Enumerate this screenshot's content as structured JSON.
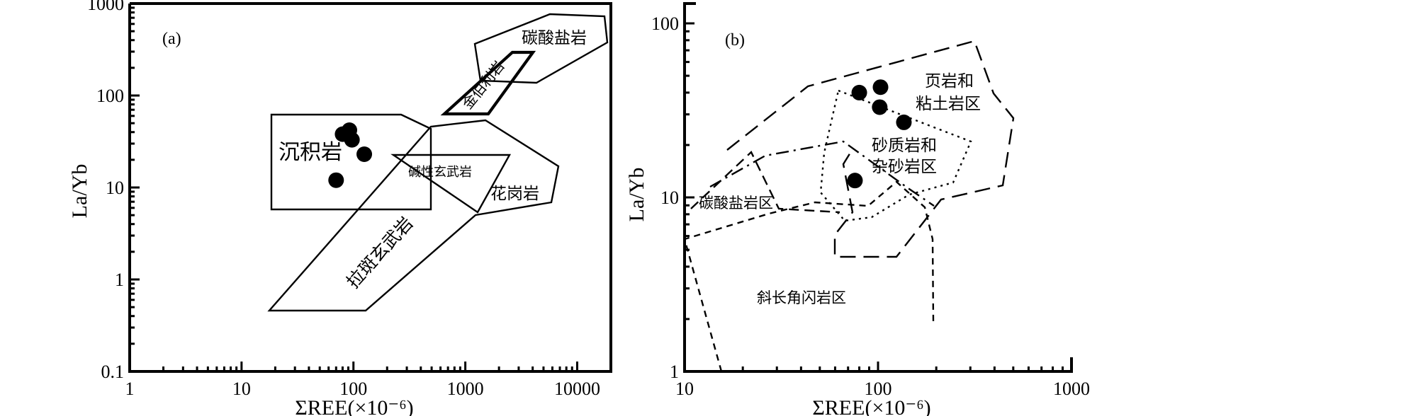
{
  "chart_data": [
    {
      "type": "scatter",
      "panel_label": "(a)",
      "xlabel": "ΣREE(×10⁻⁶)",
      "ylabel": "La/Yb",
      "x_scale": "log",
      "y_scale": "log",
      "xlim": [
        1,
        20000
      ],
      "ylim": [
        0.1,
        1000
      ],
      "x_ticklabels": [
        "1",
        "10",
        "100",
        "1000",
        "10000"
      ],
      "y_ticklabels": [
        "0.1",
        "1",
        "10",
        "100",
        "1000"
      ],
      "points": [
        {
          "x": 80,
          "y": 38
        },
        {
          "x": 92,
          "y": 42
        },
        {
          "x": 97,
          "y": 33
        },
        {
          "x": 125,
          "y": 23
        },
        {
          "x": 70,
          "y": 12
        }
      ],
      "field_labels": {
        "sedimentary": "沉积岩",
        "carbonatite": "碳酸盐岩",
        "kimberlite": "金伯利岩",
        "alkali_basalt": "碱性玄武岩",
        "granite": "花岗岩",
        "tholeiite": "拉斑玄武岩"
      }
    },
    {
      "type": "scatter",
      "panel_label": "(b)",
      "xlabel": "ΣREE(×10⁻⁶)",
      "ylabel": "La/Yb",
      "x_scale": "log",
      "y_scale": "log",
      "xlim": [
        10,
        1000
      ],
      "ylim": [
        1,
        130
      ],
      "x_ticklabels": [
        "10",
        "100",
        "1000"
      ],
      "y_ticklabels": [
        "1",
        "10",
        "100"
      ],
      "points": [
        {
          "x": 80,
          "y": 40
        },
        {
          "x": 103,
          "y": 43
        },
        {
          "x": 102,
          "y": 33
        },
        {
          "x": 136,
          "y": 27
        },
        {
          "x": 76,
          "y": 12.5
        }
      ],
      "field_labels": {
        "shale_line1": "页岩和",
        "shale_line2": "粘土岩区",
        "sandstone_line1": "砂质岩和",
        "sandstone_line2": "杂砂岩区",
        "carbonate": "碳酸盐岩区",
        "plagioclase": "斜长角闪岩区"
      }
    }
  ]
}
